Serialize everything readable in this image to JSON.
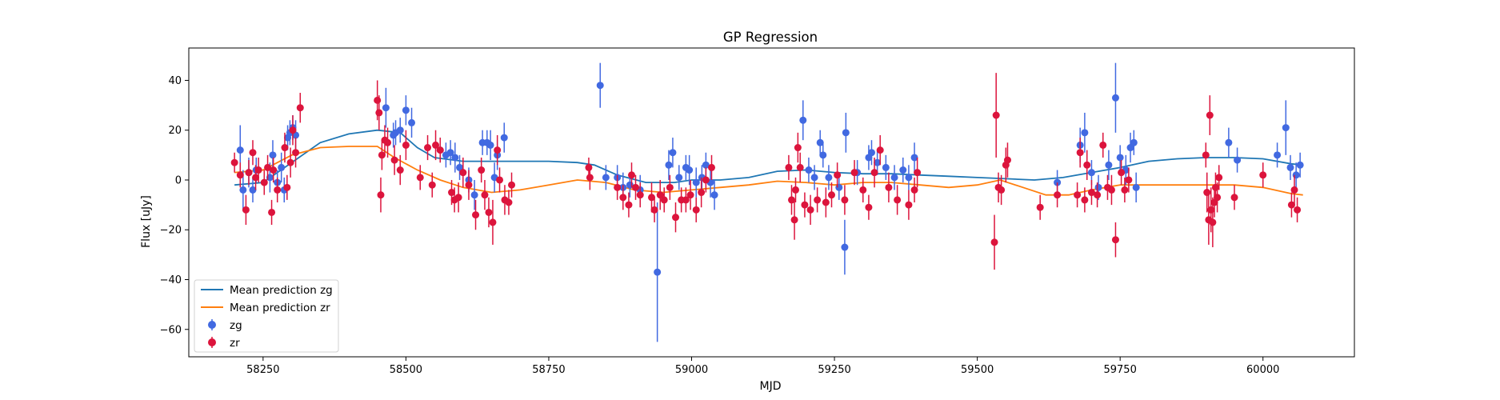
{
  "chart_data": {
    "type": "scatter",
    "title": "GP Regression",
    "xlabel": "MJD",
    "ylabel": "Flux [uJy]",
    "xlim": [
      58120,
      60160
    ],
    "ylim": [
      -71,
      53
    ],
    "xticks": [
      58250,
      58500,
      58750,
      59000,
      59250,
      59500,
      59750,
      60000
    ],
    "yticks": [
      -60,
      -40,
      -20,
      0,
      20,
      40
    ],
    "grid": false,
    "legend_position": "lower-left",
    "lines": [
      {
        "name": "Mean prediction zg",
        "color": "#1f77b4",
        "x": [
          58200,
          58250,
          58300,
          58350,
          58400,
          58450,
          58490,
          58520,
          58550,
          58600,
          58650,
          58700,
          58750,
          58800,
          58830,
          58870,
          58920,
          58970,
          59000,
          59050,
          59100,
          59150,
          59200,
          59250,
          59300,
          59350,
          59400,
          59450,
          59500,
          59550,
          59600,
          59650,
          59700,
          59750,
          59800,
          59850,
          59900,
          59950,
          60000,
          60050,
          60070
        ],
        "y": [
          -2,
          -1,
          7,
          15,
          18.5,
          20,
          19,
          13,
          9,
          7.5,
          7.5,
          7.5,
          7.5,
          7,
          6,
          2,
          -1,
          -1,
          0,
          0,
          1,
          3.5,
          4,
          3,
          2.5,
          2.5,
          2,
          1.5,
          1,
          0.5,
          0,
          1,
          3,
          5,
          7.5,
          8.5,
          9,
          9,
          8.5,
          6.5,
          6
        ]
      },
      {
        "name": "Mean prediction zr",
        "color": "#ff7f0e",
        "x": [
          58200,
          58250,
          58300,
          58350,
          58400,
          58450,
          58480,
          58520,
          58560,
          58600,
          58650,
          58700,
          58750,
          58800,
          58850,
          58900,
          58950,
          59000,
          59050,
          59100,
          59150,
          59200,
          59250,
          59300,
          59350,
          59400,
          59450,
          59500,
          59540,
          59580,
          59620,
          59660,
          59700,
          59750,
          59800,
          59850,
          59900,
          59950,
          60000,
          60050,
          60070
        ],
        "y": [
          3,
          4,
          10,
          13,
          13.5,
          13.5,
          9,
          4,
          0,
          -3,
          -5,
          -4,
          -2,
          0,
          -1,
          -4,
          -5,
          -4,
          -3,
          -2,
          -0.5,
          -1,
          -2,
          -1,
          -1,
          -2,
          -3,
          -2,
          0,
          -3,
          -6,
          -6,
          -4,
          -2,
          -2,
          -2,
          -2,
          -2,
          -3,
          -5.5,
          -6
        ]
      }
    ],
    "series": [
      {
        "name": "zg",
        "color": "#4169e1",
        "points": [
          [
            58210,
            12,
            10
          ],
          [
            58215,
            -4,
            8
          ],
          [
            58225,
            3,
            6
          ],
          [
            58232,
            -4,
            5
          ],
          [
            58238,
            4,
            5
          ],
          [
            58262,
            1,
            6
          ],
          [
            58267,
            10,
            6
          ],
          [
            58275,
            -1,
            5
          ],
          [
            58282,
            5,
            6
          ],
          [
            58287,
            -4,
            5
          ],
          [
            58293,
            17,
            5
          ],
          [
            58297,
            19,
            5
          ],
          [
            58302,
            21,
            5
          ],
          [
            58307,
            18,
            6
          ],
          [
            58465,
            29,
            8
          ],
          [
            58478,
            18,
            5
          ],
          [
            58482,
            19,
            5
          ],
          [
            58490,
            20,
            5
          ],
          [
            58500,
            28,
            6
          ],
          [
            58510,
            23,
            6
          ],
          [
            58560,
            12,
            5
          ],
          [
            58570,
            10,
            5
          ],
          [
            58578,
            11,
            5
          ],
          [
            58586,
            9,
            6
          ],
          [
            58594,
            5,
            5
          ],
          [
            58610,
            0,
            5
          ],
          [
            58620,
            -6,
            6
          ],
          [
            58634,
            15,
            5
          ],
          [
            58642,
            15,
            5
          ],
          [
            58648,
            14,
            6
          ],
          [
            58655,
            1,
            6
          ],
          [
            58660,
            10,
            6
          ],
          [
            58672,
            17,
            6
          ],
          [
            58840,
            38,
            9
          ],
          [
            58850,
            1,
            5
          ],
          [
            58870,
            1,
            5
          ],
          [
            58880,
            -3,
            6
          ],
          [
            58892,
            -2,
            5
          ],
          [
            58910,
            -4,
            6
          ],
          [
            58940,
            -37,
            28
          ],
          [
            58960,
            6,
            6
          ],
          [
            58967,
            11,
            6
          ],
          [
            58978,
            1,
            5
          ],
          [
            58990,
            5,
            5
          ],
          [
            58996,
            4,
            6
          ],
          [
            59008,
            -1,
            6
          ],
          [
            59018,
            1,
            5
          ],
          [
            59025,
            6,
            5
          ],
          [
            59033,
            -1,
            6
          ],
          [
            59040,
            -6,
            6
          ],
          [
            59195,
            24,
            8
          ],
          [
            59205,
            4,
            5
          ],
          [
            59215,
            1,
            5
          ],
          [
            59225,
            15,
            5
          ],
          [
            59230,
            10,
            5
          ],
          [
            59240,
            1,
            5
          ],
          [
            59258,
            -3,
            5
          ],
          [
            59268,
            -27,
            11
          ],
          [
            59270,
            19,
            8
          ],
          [
            59290,
            3,
            5
          ],
          [
            59310,
            9,
            5
          ],
          [
            59315,
            11,
            5
          ],
          [
            59325,
            7,
            5
          ],
          [
            59340,
            5,
            5
          ],
          [
            59355,
            1,
            5
          ],
          [
            59370,
            4,
            5
          ],
          [
            59380,
            1,
            5
          ],
          [
            59390,
            9,
            6
          ],
          [
            59640,
            -1,
            5
          ],
          [
            59680,
            14,
            7
          ],
          [
            59688,
            19,
            8
          ],
          [
            59700,
            3,
            5
          ],
          [
            59712,
            -3,
            5
          ],
          [
            59730,
            6,
            6
          ],
          [
            59742,
            33,
            14
          ],
          [
            59750,
            9,
            5
          ],
          [
            59760,
            4,
            6
          ],
          [
            59768,
            13,
            6
          ],
          [
            59774,
            15,
            5
          ],
          [
            59778,
            -3,
            6
          ],
          [
            59940,
            15,
            6
          ],
          [
            59955,
            8,
            5
          ],
          [
            60025,
            10,
            5
          ],
          [
            60040,
            21,
            11
          ],
          [
            60048,
            5,
            5
          ],
          [
            60058,
            2,
            5
          ],
          [
            60065,
            6,
            5
          ]
        ]
      },
      {
        "name": "zr",
        "color": "#dc143c",
        "points": [
          [
            58200,
            7,
            4
          ],
          [
            58210,
            2,
            5
          ],
          [
            58220,
            -12,
            6
          ],
          [
            58225,
            3,
            5
          ],
          [
            58232,
            11,
            5
          ],
          [
            58237,
            1,
            5
          ],
          [
            58242,
            4,
            5
          ],
          [
            58252,
            -1,
            5
          ],
          [
            58258,
            5,
            5
          ],
          [
            58265,
            -13,
            5
          ],
          [
            58268,
            4,
            5
          ],
          [
            58275,
            -4,
            5
          ],
          [
            58288,
            13,
            6
          ],
          [
            58292,
            -3,
            5
          ],
          [
            58298,
            7,
            6
          ],
          [
            58302,
            20,
            6
          ],
          [
            58307,
            11,
            6
          ],
          [
            58315,
            29,
            6
          ],
          [
            58450,
            32,
            8
          ],
          [
            58453,
            27,
            7
          ],
          [
            58456,
            -6,
            7
          ],
          [
            58458,
            10,
            6
          ],
          [
            58463,
            16,
            6
          ],
          [
            58468,
            15,
            6
          ],
          [
            58480,
            8,
            6
          ],
          [
            58490,
            4,
            6
          ],
          [
            58500,
            14,
            6
          ],
          [
            58525,
            1,
            5
          ],
          [
            58538,
            13,
            5
          ],
          [
            58546,
            -2,
            5
          ],
          [
            58552,
            14,
            6
          ],
          [
            58560,
            12,
            5
          ],
          [
            58580,
            -5,
            5
          ],
          [
            58585,
            -8,
            5
          ],
          [
            58592,
            -7,
            6
          ],
          [
            58600,
            3,
            6
          ],
          [
            58610,
            -2,
            6
          ],
          [
            58622,
            -14,
            6
          ],
          [
            58632,
            4,
            5
          ],
          [
            58638,
            -6,
            6
          ],
          [
            58645,
            -13,
            6
          ],
          [
            58652,
            -17,
            9
          ],
          [
            58660,
            12,
            6
          ],
          [
            58664,
            0,
            5
          ],
          [
            58673,
            -8,
            6
          ],
          [
            58680,
            -9,
            5
          ],
          [
            58685,
            -2,
            5
          ],
          [
            58820,
            5,
            4
          ],
          [
            58822,
            1,
            5
          ],
          [
            58870,
            -3,
            5
          ],
          [
            58880,
            -7,
            5
          ],
          [
            58890,
            -10,
            5
          ],
          [
            58895,
            2,
            5
          ],
          [
            58902,
            -3,
            5
          ],
          [
            58910,
            -6,
            5
          ],
          [
            58930,
            -7,
            6
          ],
          [
            58935,
            -12,
            5
          ],
          [
            58945,
            -6,
            6
          ],
          [
            58952,
            -8,
            5
          ],
          [
            58962,
            -3,
            5
          ],
          [
            58972,
            -15,
            6
          ],
          [
            58982,
            -8,
            5
          ],
          [
            58990,
            -8,
            5
          ],
          [
            58998,
            -6,
            6
          ],
          [
            59008,
            -12,
            5
          ],
          [
            59017,
            -5,
            6
          ],
          [
            59025,
            0,
            5
          ],
          [
            59035,
            5,
            5
          ],
          [
            59170,
            5,
            5
          ],
          [
            59175,
            -8,
            6
          ],
          [
            59180,
            -16,
            8
          ],
          [
            59182,
            -4,
            5
          ],
          [
            59186,
            13,
            6
          ],
          [
            59190,
            5,
            6
          ],
          [
            59198,
            -10,
            5
          ],
          [
            59208,
            -12,
            6
          ],
          [
            59220,
            -8,
            5
          ],
          [
            59235,
            -9,
            6
          ],
          [
            59245,
            -6,
            5
          ],
          [
            59255,
            2,
            5
          ],
          [
            59268,
            -8,
            6
          ],
          [
            59285,
            3,
            5
          ],
          [
            59300,
            -4,
            5
          ],
          [
            59310,
            -11,
            5
          ],
          [
            59320,
            3,
            6
          ],
          [
            59330,
            12,
            6
          ],
          [
            59345,
            -3,
            6
          ],
          [
            59360,
            -8,
            6
          ],
          [
            59380,
            -10,
            6
          ],
          [
            59390,
            -4,
            5
          ],
          [
            59395,
            3,
            6
          ],
          [
            59530,
            -25,
            11
          ],
          [
            59533,
            26,
            17
          ],
          [
            59537,
            -3,
            6
          ],
          [
            59542,
            -4,
            6
          ],
          [
            59550,
            6,
            7
          ],
          [
            59553,
            8,
            7
          ],
          [
            59610,
            -11,
            5
          ],
          [
            59640,
            -6,
            5
          ],
          [
            59675,
            -6,
            5
          ],
          [
            59680,
            11,
            6
          ],
          [
            59688,
            -8,
            5
          ],
          [
            59692,
            6,
            6
          ],
          [
            59700,
            -5,
            5
          ],
          [
            59710,
            -6,
            5
          ],
          [
            59720,
            14,
            5
          ],
          [
            59728,
            -3,
            5
          ],
          [
            59735,
            -4,
            6
          ],
          [
            59742,
            -24,
            7
          ],
          [
            59752,
            3,
            5
          ],
          [
            59758,
            -4,
            5
          ],
          [
            59765,
            0,
            5
          ],
          [
            59900,
            10,
            5
          ],
          [
            59902,
            -5,
            8
          ],
          [
            59905,
            -16,
            10
          ],
          [
            59907,
            26,
            8
          ],
          [
            59909,
            -12,
            9
          ],
          [
            59912,
            -17,
            10
          ],
          [
            59915,
            -9,
            6
          ],
          [
            59917,
            -3,
            6
          ],
          [
            59920,
            -7,
            6
          ],
          [
            59923,
            1,
            5
          ],
          [
            59950,
            -7,
            5
          ],
          [
            60000,
            2,
            5
          ],
          [
            60050,
            -10,
            5
          ],
          [
            60055,
            -4,
            6
          ],
          [
            60060,
            -12,
            5
          ]
        ]
      }
    ]
  }
}
